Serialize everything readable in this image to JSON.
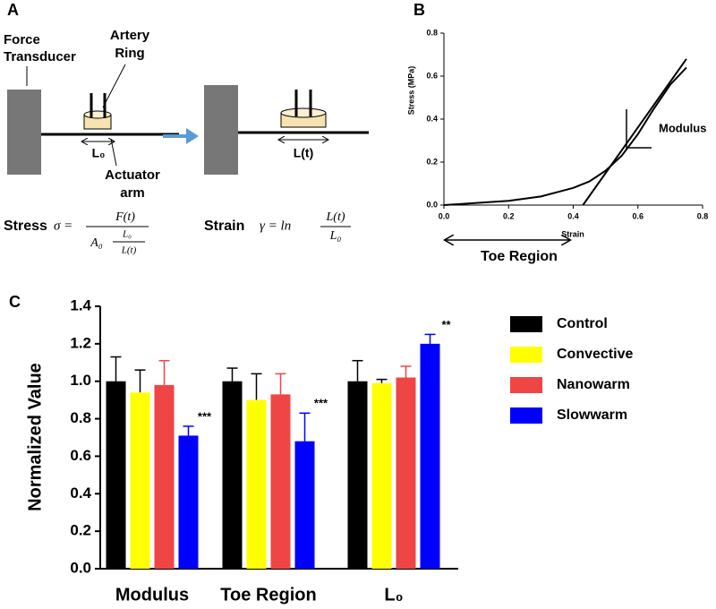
{
  "diagram": {
    "panel_label": "A",
    "force_1": "Force",
    "force_2": "Transducer",
    "artery_1": "Artery",
    "artery_2": "Ring",
    "l0": "L₀",
    "actuator_1": "Actuator",
    "actuator_2": "arm",
    "lt": "L(t)",
    "stress": {
      "label": "Stress",
      "lhs": "σ =",
      "num": "F(t)",
      "den_a": "A₀",
      "den_num": "L₀",
      "den_den": "L(t)"
    },
    "strain": {
      "label": "Strain",
      "lhs": "γ = ln",
      "num": "L(t)",
      "den": "L₀"
    }
  },
  "chart_data": [
    {
      "type": "line",
      "panel_label": "B",
      "xlabel": "Strain",
      "ylabel": "Stress (MPa)",
      "annotations": [
        "Modulus",
        "Toe Region"
      ],
      "xlim": [
        0,
        0.8
      ],
      "ylim": [
        0,
        0.8
      ],
      "xticks": [
        {
          "value": 0,
          "label": "0.0"
        },
        0.2,
        0.4,
        0.6,
        0.8
      ],
      "yticks": [
        {
          "value": 0,
          "label": "0.0"
        },
        0.2,
        0.4,
        0.6,
        0.8
      ],
      "series": [
        {
          "color": "#000000",
          "x": [
            0,
            0.1,
            0.2,
            0.3,
            0.4,
            0.45,
            0.5,
            0.55,
            0.6,
            0.65,
            0.7,
            0.75
          ],
          "values": [
            0,
            0.01,
            0.02,
            0.04,
            0.08,
            0.11,
            0.16,
            0.23,
            0.33,
            0.45,
            0.56,
            0.64
          ]
        },
        {
          "color": "#000000",
          "x": [
            0.43,
            0.75
          ],
          "values": [
            0,
            0.68
          ]
        }
      ]
    },
    {
      "type": "bar",
      "panel_label": "C",
      "ylabel": "Normalized Value",
      "categories": [
        "Modulus",
        "Toe Region",
        "L₀"
      ],
      "ylim": [
        0,
        1.4
      ],
      "yticks": [
        {
          "value": 0,
          "label": "0.0"
        },
        0.2,
        0.4,
        0.6,
        0.8,
        {
          "value": 1,
          "label": "1.0"
        },
        1.2,
        1.4
      ],
      "series": [
        {
          "name": "Control",
          "color": "#000000",
          "values": [
            1.0,
            1.0,
            1.0
          ],
          "errors": [
            0.13,
            0.07,
            0.11
          ]
        },
        {
          "name": "Convective",
          "color": "#ffff00",
          "values": [
            0.94,
            0.9,
            0.99
          ],
          "errors": [
            0.12,
            0.14,
            0.02
          ]
        },
        {
          "name": "Nanowarm",
          "color": "#f04545",
          "values": [
            0.98,
            0.93,
            1.02
          ],
          "errors": [
            0.13,
            0.11,
            0.06
          ]
        },
        {
          "name": "Slowwarm",
          "color": "#0000ff",
          "values": [
            0.71,
            0.68,
            1.2
          ],
          "errors": [
            0.05,
            0.15,
            0.05
          ],
          "significance": [
            "***",
            "***",
            "**"
          ]
        }
      ]
    }
  ]
}
